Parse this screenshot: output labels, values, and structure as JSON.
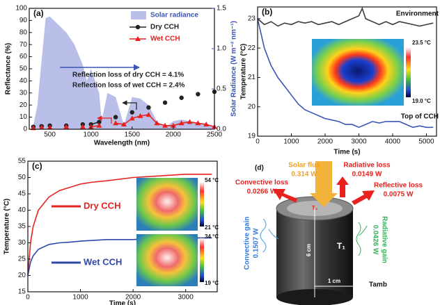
{
  "chart_data": [
    {
      "type": "line",
      "panel": "(a)",
      "x_label": "Wavelength (nm)",
      "y_label": "Reflectance (%)",
      "y2_label": "Solar Radiance (W m⁻² nm⁻¹)",
      "xlim": [
        250,
        2500
      ],
      "xticks": [
        500,
        1000,
        1500,
        2000,
        2500
      ],
      "ylim": [
        0,
        100
      ],
      "yticks": [
        0,
        10,
        20,
        30,
        40,
        50,
        60,
        70,
        80,
        90,
        100
      ],
      "y2lim": [
        0,
        1.5
      ],
      "y2ticks": [
        {
          "value": 0,
          "label": "0.0"
        },
        {
          "value": 0.5,
          "label": "0.5"
        },
        {
          "value": 1,
          "label": "1.0"
        },
        {
          "value": 1.5,
          "label": "1.5"
        }
      ],
      "legend": "upper right",
      "x": [
        300,
        350,
        400,
        450,
        500,
        600,
        700,
        800,
        900,
        950,
        1000,
        1100,
        1130,
        1200,
        1300,
        1400,
        1500,
        1600,
        1700,
        1800,
        1900,
        2000,
        2100,
        2200,
        2300,
        2400,
        2500
      ],
      "series": [
        {
          "name": "Solar radiance",
          "type": "area",
          "axis": "y2",
          "color": "#b9bfe8",
          "values": [
            0.05,
            0.3,
            0.85,
            1.38,
            1.4,
            1.3,
            1.2,
            1.05,
            0.8,
            0.6,
            0.75,
            0.45,
            0.1,
            0.45,
            0.4,
            0.05,
            0.4,
            0.38,
            0.3,
            0.1,
            0.02,
            0.1,
            0.12,
            0.1,
            0.08,
            0.05,
            0.03
          ]
        },
        {
          "name": "Dry CCH",
          "type": "line",
          "marker": "circle",
          "color": "#222222",
          "values": [
            2,
            null,
            2.5,
            null,
            3,
            null,
            3,
            null,
            4,
            null,
            4,
            6,
            null,
            null,
            10,
            null,
            14,
            null,
            18,
            null,
            22,
            null,
            26,
            null,
            29,
            null,
            31
          ]
        },
        {
          "name": "Wet CCH",
          "type": "line",
          "marker": "triangle",
          "color": "#e8211e",
          "values": [
            1,
            null,
            1.5,
            null,
            1.5,
            null,
            2,
            null,
            2,
            null,
            2,
            3,
            null,
            null,
            5,
            4,
            9,
            11,
            12,
            5,
            3,
            3,
            5,
            6,
            5,
            4,
            2
          ]
        }
      ],
      "annotations": [
        {
          "text": "Reflection loss of dry CCH = 4.1%",
          "color": "#222222"
        },
        {
          "text": "Reflection loss of wet CCH = 2.4%",
          "color": "#222222"
        }
      ]
    },
    {
      "type": "line",
      "panel": "(b)",
      "x_label": "Time (s)",
      "y_label": "Temperature (°C)",
      "xlim": [
        0,
        5300
      ],
      "xticks": [
        0,
        1000,
        2000,
        3000,
        4000,
        5000
      ],
      "ylim": [
        19,
        23.4
      ],
      "yticks": [
        19,
        20,
        21,
        22,
        23
      ],
      "legend": "inline",
      "x": [
        0,
        200,
        400,
        600,
        800,
        1000,
        1200,
        1400,
        1600,
        1800,
        2000,
        2200,
        2400,
        2600,
        2800,
        3000,
        3100,
        3200,
        3400,
        3600,
        3800,
        4000,
        4200,
        4400,
        4600,
        4800,
        5000,
        5200
      ],
      "series": [
        {
          "name": "Environment",
          "type": "line",
          "color": "#3c3c3c",
          "values": [
            23.0,
            22.8,
            22.9,
            22.75,
            22.85,
            22.8,
            22.9,
            22.85,
            22.9,
            22.8,
            22.85,
            22.9,
            22.8,
            22.9,
            23.0,
            23.1,
            23.35,
            23.0,
            22.9,
            22.8,
            22.9,
            22.8,
            22.9,
            22.85,
            22.8,
            22.75,
            22.8,
            22.85
          ]
        },
        {
          "name": "Top of CCH",
          "type": "line",
          "color": "#3a55b5",
          "values": [
            23.0,
            22.0,
            21.4,
            21.0,
            20.7,
            20.4,
            20.1,
            19.9,
            19.8,
            19.7,
            19.6,
            19.55,
            19.5,
            19.4,
            19.4,
            19.3,
            19.35,
            19.4,
            19.5,
            19.45,
            19.5,
            19.5,
            19.5,
            19.4,
            19.3,
            19.35,
            19.3,
            19.3
          ]
        }
      ],
      "insets": [
        {
          "max_label": "23.5 °C",
          "min_label": "19.0 °C"
        }
      ]
    },
    {
      "type": "line",
      "panel": "(c)",
      "x_label": "Time (s)",
      "y_label": "Temperature (°C)",
      "xlim": [
        0,
        3600
      ],
      "xticks": [
        0,
        1000,
        2000,
        3000
      ],
      "ylim": [
        15,
        55
      ],
      "yticks": [
        15,
        20,
        25,
        30,
        35,
        40,
        45,
        50,
        55
      ],
      "legend": "inline",
      "x": [
        0,
        50,
        100,
        200,
        400,
        600,
        800,
        1000,
        1200,
        1500,
        2000,
        2500,
        3000,
        3500
      ],
      "series": [
        {
          "name": "Dry CCH",
          "type": "line",
          "color": "#e8211e",
          "values": [
            20,
            30,
            35,
            40,
            44,
            46,
            47,
            48,
            48.5,
            49,
            50,
            50.5,
            51,
            51
          ]
        },
        {
          "name": "Wet CCH",
          "type": "line",
          "color": "#2f47a8",
          "values": [
            20,
            24,
            26,
            28,
            29.5,
            30,
            30.2,
            30.5,
            30.7,
            31,
            31,
            31.5,
            31.5,
            31.5
          ]
        }
      ],
      "insets": [
        {
          "max_label": "54 °C",
          "min_label": "21 °C"
        },
        {
          "max_label": "34 °C",
          "min_label": "19 °C"
        }
      ]
    }
  ],
  "diagram": {
    "panel": "(d)",
    "solar_flux": {
      "label": "Solar flux",
      "value": "0.314 W"
    },
    "radiative_loss": {
      "label": "Radiative loss",
      "value": "0.0149 W"
    },
    "convective_loss": {
      "label": "Convective loss",
      "value": "0.0266 W"
    },
    "reflective_loss": {
      "label": "Reflective loss",
      "value": "0.0075 W"
    },
    "convective_gain": {
      "label": "Convective gain",
      "value": "0.1507 W"
    },
    "radiative_gain": {
      "label": "Radiative gain",
      "value": "0.0426 W"
    },
    "height": "6 cm",
    "radius": "1 cm",
    "t_top": "T₂",
    "t_body": "T₁",
    "t_amb": "Tamb"
  }
}
